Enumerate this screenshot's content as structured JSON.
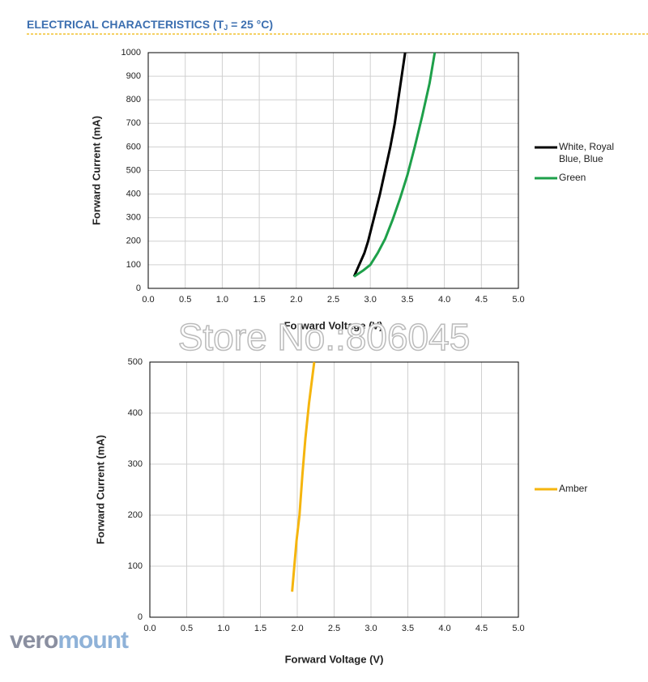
{
  "header": {
    "title_main": "ELECTRICAL CHARACTERISTICS (T",
    "title_sub": "J",
    "title_end": " = 25 °C)"
  },
  "watermark": "Store No.:806045",
  "logo": {
    "part1": "vero",
    "part2": "mount"
  },
  "chart_data": [
    {
      "type": "line",
      "xlabel": "Forward Voltage (V)",
      "ylabel": "Forward Current (mA)",
      "xlim": [
        0,
        5
      ],
      "ylim": [
        0,
        1000
      ],
      "xticks": [
        {
          "value": 0,
          "label": "0.0"
        },
        0.5,
        {
          "value": 1,
          "label": "1.0"
        },
        1.5,
        {
          "value": 2,
          "label": "2.0"
        },
        2.5,
        {
          "value": 3,
          "label": "3.0"
        },
        3.5,
        {
          "value": 4,
          "label": "4.0"
        },
        4.5,
        {
          "value": 5,
          "label": "5.0"
        }
      ],
      "yticks": [
        0,
        100,
        200,
        300,
        400,
        500,
        600,
        700,
        800,
        900,
        1000
      ],
      "grid": true,
      "legend": "right",
      "series": [
        {
          "name": "White, Royal Blue, Blue",
          "color": "#000000",
          "x": [
            2.78,
            2.85,
            2.92,
            2.97,
            3.05,
            3.13,
            3.2,
            3.27,
            3.33,
            3.4,
            3.47
          ],
          "values": [
            50,
            100,
            150,
            200,
            300,
            400,
            500,
            600,
            700,
            850,
            1000
          ]
        },
        {
          "name": "Green",
          "color": "#1ea04a",
          "x": [
            2.78,
            2.9,
            3.0,
            3.1,
            3.2,
            3.3,
            3.4,
            3.5,
            3.6,
            3.7,
            3.8,
            3.87
          ],
          "values": [
            50,
            75,
            100,
            150,
            210,
            290,
            380,
            480,
            600,
            730,
            870,
            1000
          ]
        }
      ]
    },
    {
      "type": "line",
      "xlabel": "Forward Voltage (V)",
      "ylabel": "Forward Current (mA)",
      "xlim": [
        0,
        5
      ],
      "ylim": [
        0,
        500
      ],
      "xticks": [
        {
          "value": 0,
          "label": "0.0"
        },
        0.5,
        {
          "value": 1,
          "label": "1.0"
        },
        1.5,
        {
          "value": 2,
          "label": "2.0"
        },
        2.5,
        {
          "value": 3,
          "label": "3.0"
        },
        3.5,
        {
          "value": 4,
          "label": "4.0"
        },
        4.5,
        {
          "value": 5,
          "label": "5.0"
        }
      ],
      "yticks": [
        0,
        100,
        200,
        300,
        400,
        500
      ],
      "grid": true,
      "legend": "right",
      "series": [
        {
          "name": "Amber",
          "color": "#f5b50e",
          "x": [
            1.93,
            1.96,
            1.99,
            2.03,
            2.07,
            2.11,
            2.16,
            2.23
          ],
          "values": [
            50,
            100,
            150,
            200,
            280,
            350,
            420,
            500
          ]
        }
      ]
    }
  ]
}
